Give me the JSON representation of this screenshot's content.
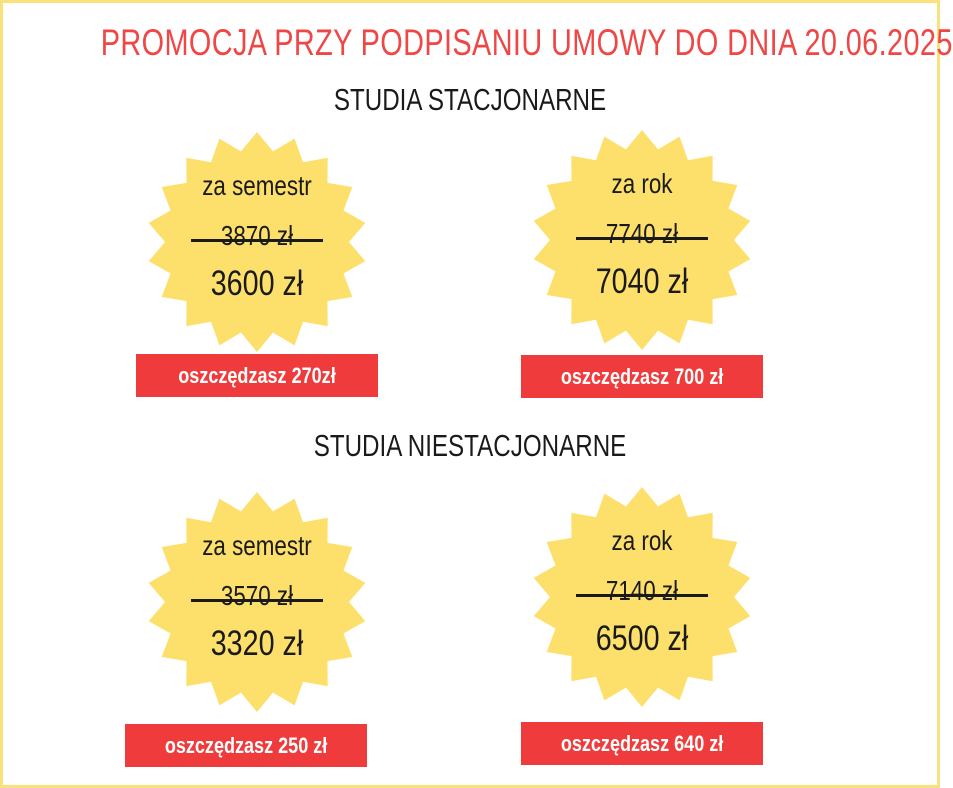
{
  "headline": "PROMOCJA PRZY PODPISANIU UMOWY DO DNIA 20.06.2025",
  "colors": {
    "headline": "#ef4646",
    "badge": "#fde06b",
    "savings": "#ef3b3b",
    "border": "#f9e27c"
  },
  "sections": [
    {
      "title": "STUDIA STACJONARNE",
      "offers": [
        {
          "label": "za semestr",
          "old_price": "3870 zł",
          "new_price": "3600 zł",
          "savings": "oszczędzasz 270zł"
        },
        {
          "label": "za rok",
          "old_price": "7740 zł",
          "new_price": "7040 zł",
          "savings": "oszczędzasz 700 zł"
        }
      ]
    },
    {
      "title": "STUDIA NIESTACJONARNE",
      "offers": [
        {
          "label": "za semestr",
          "old_price": "3570 zł",
          "new_price": "3320 zł",
          "savings": "oszczędzasz 250 zł"
        },
        {
          "label": "za rok",
          "old_price": "7140 zł",
          "new_price": "6500 zł",
          "savings": "oszczędzasz 640 zł"
        }
      ]
    }
  ]
}
